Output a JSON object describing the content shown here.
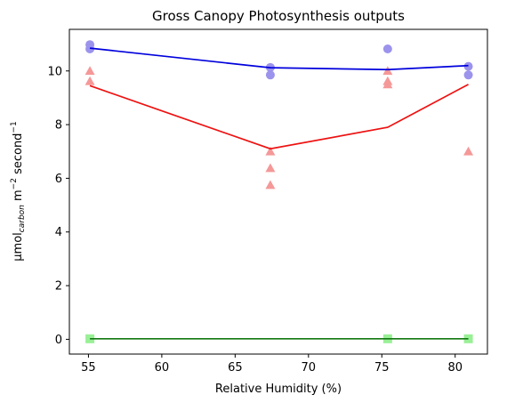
{
  "chart_data": {
    "type": "scatter",
    "title": "Gross Canopy Photosynthesis outputs",
    "xlabel": "Relative Humidity (%)",
    "ylabel_parts": {
      "prefix": "μmol",
      "subscript": "carbon",
      "middle": " m",
      "sup1": "−2",
      "suffix": " second",
      "sup2": "−1"
    },
    "xlim": [
      53.7,
      82.2
    ],
    "ylim": [
      -0.55,
      11.55
    ],
    "xticks": [
      55,
      60,
      65,
      70,
      75,
      80
    ],
    "yticks": [
      0,
      2,
      4,
      6,
      8,
      10
    ],
    "grid": false,
    "series": [
      {
        "marker": "circle",
        "point_color": "#9b93ec",
        "line_color": "#0000dd",
        "points": [
          [
            55.1,
            10.98
          ],
          [
            55.1,
            10.82
          ],
          [
            67.4,
            10.13
          ],
          [
            67.4,
            9.85
          ],
          [
            75.4,
            10.82
          ],
          [
            80.9,
            10.17
          ],
          [
            80.9,
            9.85
          ]
        ],
        "line": [
          [
            55.1,
            10.85
          ],
          [
            67.4,
            10.12
          ],
          [
            75.4,
            10.05
          ],
          [
            80.9,
            10.2
          ]
        ]
      },
      {
        "marker": "triangle",
        "point_color": "#f59898",
        "line_color": "#ee1111",
        "points": [
          [
            55.1,
            10.0
          ],
          [
            55.1,
            9.62
          ],
          [
            67.4,
            7.0
          ],
          [
            67.4,
            6.38
          ],
          [
            67.4,
            5.75
          ],
          [
            75.4,
            10.0
          ],
          [
            75.4,
            9.62
          ],
          [
            75.4,
            9.5
          ],
          [
            80.9,
            7.0
          ]
        ],
        "line": [
          [
            55.1,
            9.45
          ],
          [
            67.4,
            7.1
          ],
          [
            75.4,
            7.9
          ],
          [
            80.9,
            9.5
          ]
        ]
      },
      {
        "marker": "square",
        "point_color": "#99f096",
        "line_color": "#117711",
        "points": [
          [
            55.1,
            0.02
          ],
          [
            75.4,
            0.02
          ],
          [
            80.9,
            0.02
          ]
        ],
        "line": [
          [
            55.1,
            0.02
          ],
          [
            80.9,
            0.02
          ]
        ]
      }
    ]
  }
}
